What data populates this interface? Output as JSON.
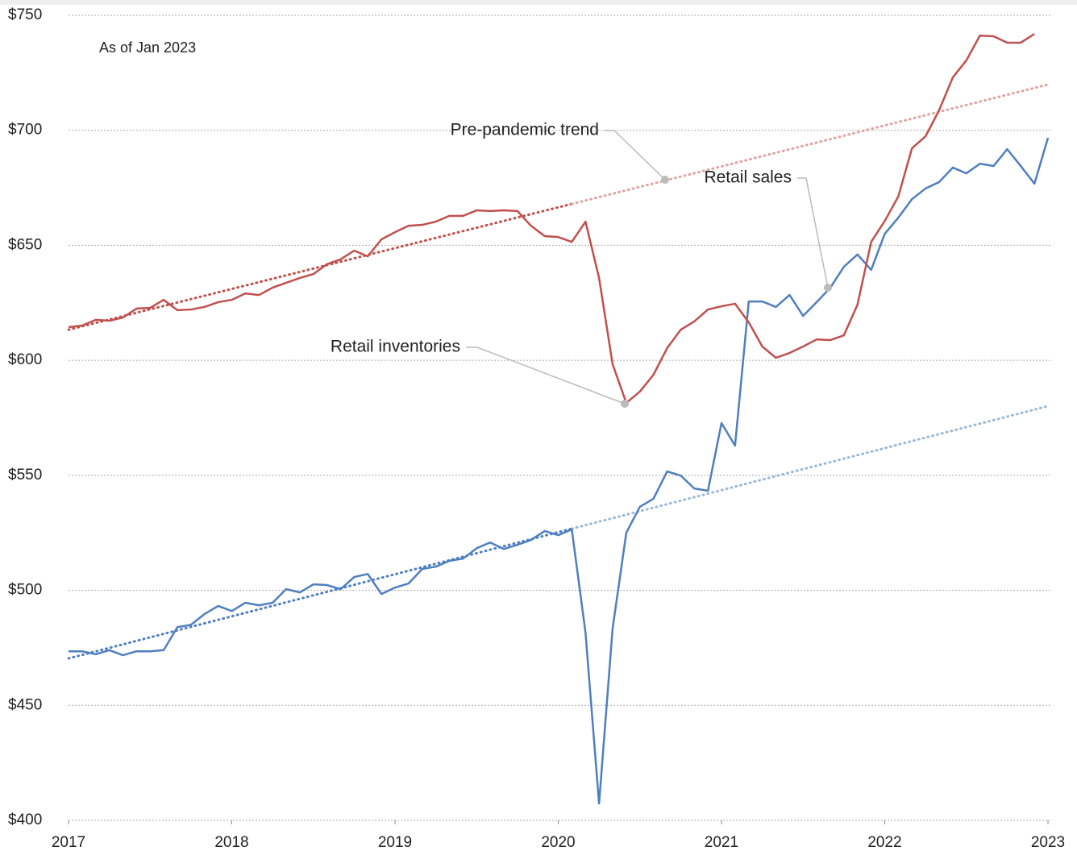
{
  "chart_data": {
    "type": "line",
    "subtitle": "As of Jan 2023",
    "x": [
      2017,
      2017.083,
      2017.167,
      2017.25,
      2017.333,
      2017.417,
      2017.5,
      2017.583,
      2017.667,
      2017.75,
      2017.833,
      2017.917,
      2018,
      2018.083,
      2018.167,
      2018.25,
      2018.333,
      2018.417,
      2018.5,
      2018.583,
      2018.667,
      2018.75,
      2018.833,
      2018.917,
      2019,
      2019.083,
      2019.167,
      2019.25,
      2019.333,
      2019.417,
      2019.5,
      2019.583,
      2019.667,
      2019.75,
      2019.833,
      2019.917,
      2020,
      2020.083,
      2020.167,
      2020.25,
      2020.333,
      2020.417,
      2020.5,
      2020.583,
      2020.667,
      2020.75,
      2020.833,
      2020.917,
      2021,
      2021.083,
      2021.167,
      2021.25,
      2021.333,
      2021.417,
      2021.5,
      2021.583,
      2021.667,
      2021.75,
      2021.833,
      2021.917,
      2022,
      2022.083,
      2022.167,
      2022.25,
      2022.333,
      2022.417,
      2022.5,
      2022.583,
      2022.667,
      2022.75,
      2022.833,
      2022.917,
      2023
    ],
    "series": [
      {
        "name": "Retail sales",
        "color": "#4f7fbf",
        "values": [
          473.5,
          473.5,
          472.2,
          474,
          471.8,
          473.5,
          473.5,
          474,
          484,
          485,
          489.7,
          493.2,
          491,
          494.6,
          493.5,
          494.6,
          500.5,
          499.1,
          502.6,
          502.3,
          500.5,
          505.8,
          507.1,
          498.4,
          501.2,
          503,
          509.3,
          510.3,
          512.8,
          513.8,
          518.3,
          520.8,
          518,
          519.8,
          521.9,
          525.8,
          524,
          526.5,
          481.6,
          407.3,
          483.4,
          525.1,
          536.3,
          539.8,
          551.7,
          549.9,
          544.3,
          543.3,
          572.7,
          562.9,
          625.6,
          625.6,
          623.2,
          628.4,
          619.3,
          625.3,
          631.6,
          640.7,
          646,
          639.3,
          655,
          662,
          670.1,
          674.7,
          677.5,
          683.8,
          681.3,
          685.5,
          684.5,
          691.8,
          684.5,
          676.8,
          696.7
        ]
      },
      {
        "name": "Retail inventories",
        "color": "#c0504d",
        "values": [
          614.4,
          615.1,
          617.6,
          617.2,
          618.6,
          622.5,
          622.8,
          626.3,
          621.8,
          622.1,
          623.2,
          625.3,
          626.3,
          629.1,
          628.4,
          631.6,
          633.7,
          635.8,
          637.5,
          641.8,
          643.9,
          647.7,
          645.2,
          652.6,
          655.7,
          658.5,
          658.9,
          660.3,
          662.8,
          662.8,
          665.2,
          664.9,
          665.2,
          664.9,
          658.5,
          654,
          653.6,
          651.5,
          660.3,
          635.8,
          598.3,
          581.5,
          586.4,
          593.7,
          605.3,
          613.3,
          616.9,
          622.1,
          623.5,
          624.6,
          616.5,
          606,
          601.1,
          603.2,
          606,
          609.1,
          608.8,
          610.9,
          624.2,
          651.5,
          660.6,
          671.2,
          692.2,
          697.4,
          708.7,
          723,
          730.4,
          741.2,
          740.9,
          738.1,
          738.1,
          741.9,
          null
        ]
      }
    ],
    "trend_lines": [
      {
        "x": [
          2017,
          2020.083,
          2023
        ],
        "values": [
          613.3,
          668,
          719.9
        ],
        "color": "#c0504d",
        "projection_color": "#e0a3a1"
      },
      {
        "x": [
          2017,
          2020.083,
          2023
        ],
        "values": [
          470.4,
          526.8,
          580.1
        ],
        "color": "#4f7fbf",
        "projection_color": "#9bb8d6"
      }
    ],
    "annotations": [
      {
        "text": "Pre-pandemic trend",
        "color": "#aaaaaa"
      },
      {
        "text": "Retail sales",
        "color": "#4f7fbf"
      },
      {
        "text": "Retail inventories",
        "color": "#c0504d"
      }
    ],
    "xlim": [
      2017,
      2023
    ],
    "xticks": [
      2017,
      2018,
      2019,
      2020,
      2021,
      2022,
      2023
    ],
    "ylim": [
      400,
      750
    ],
    "yticks": [
      {
        "value": 400,
        "label": "$400"
      },
      {
        "value": 450,
        "label": "$450"
      },
      {
        "value": 500,
        "label": "$500"
      },
      {
        "value": 550,
        "label": "$550"
      },
      {
        "value": 600,
        "label": "$600"
      },
      {
        "value": 650,
        "label": "$650"
      },
      {
        "value": 700,
        "label": "$700"
      },
      {
        "value": 750,
        "label": "$750"
      }
    ],
    "grid": true
  }
}
